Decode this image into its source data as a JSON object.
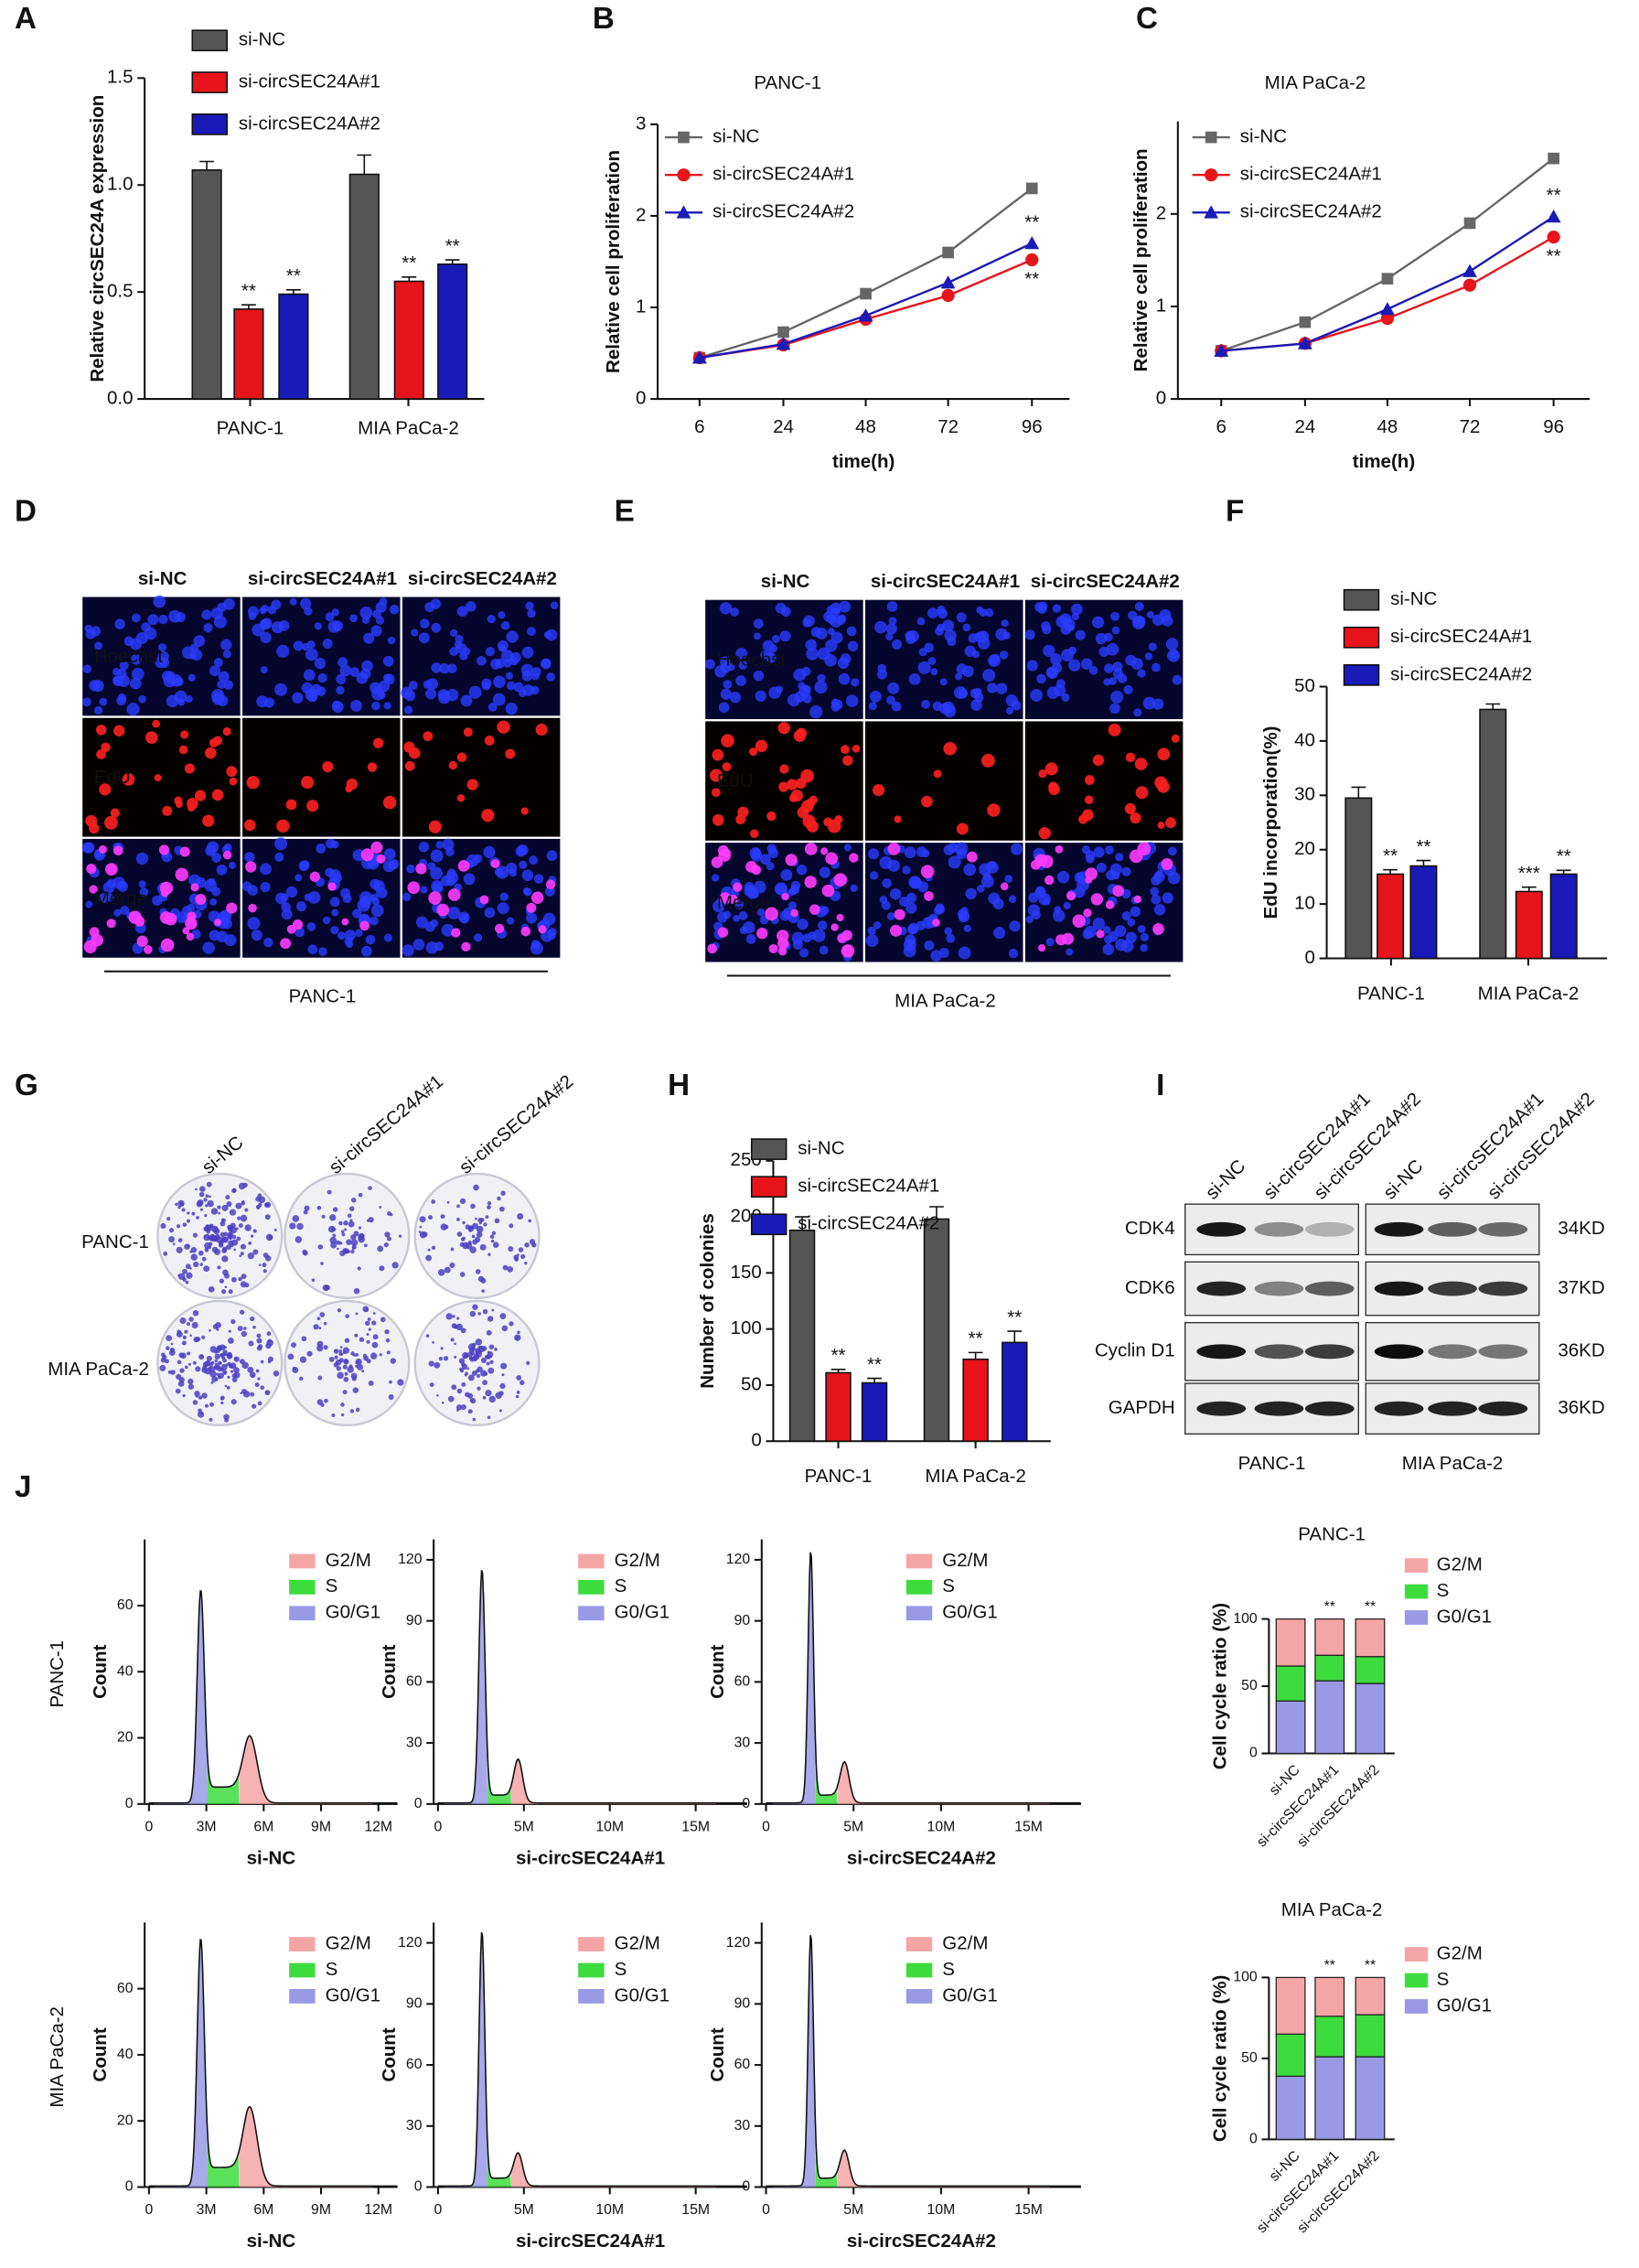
{
  "chart_data": [
    {
      "panel": "A",
      "type": "bar",
      "y_label": "Relative circSEC24A expression",
      "categories": [
        "PANC-1",
        "MIA PaCa-2"
      ],
      "series": [
        {
          "name": "si-NC",
          "color": "#555555",
          "values": [
            1.07,
            1.05
          ],
          "errors": [
            0.04,
            0.09
          ]
        },
        {
          "name": "si-circSEC24A#1",
          "color": "#e8141b",
          "values": [
            0.42,
            0.55
          ],
          "errors": [
            0.02,
            0.02
          ],
          "stars": [
            "**",
            "**"
          ]
        },
        {
          "name": "si-circSEC24A#2",
          "color": "#1a1ab8",
          "values": [
            0.49,
            0.63
          ],
          "errors": [
            0.02,
            0.02
          ],
          "stars": [
            "**",
            "**"
          ]
        }
      ],
      "ylim": [
        0,
        1.5
      ],
      "yticks": [
        {
          "value": 0,
          "label": "0.0"
        },
        {
          "value": 0.5,
          "label": "0.5"
        },
        {
          "value": 1,
          "label": "1.0"
        },
        {
          "value": 1.5,
          "label": "1.5"
        }
      ]
    },
    {
      "panel": "B",
      "type": "line",
      "title": "PANC-1",
      "x_label": "time(h)",
      "y_label": "Relative cell proliferation",
      "categories": [
        "6",
        "24",
        "48",
        "72",
        "96"
      ],
      "series": [
        {
          "name": "si-NC",
          "color": "#666666",
          "values": [
            0.45,
            0.73,
            1.15,
            1.6,
            2.3
          ]
        },
        {
          "name": "si-circSEC24A#1",
          "color": "#e8141b",
          "values": [
            0.45,
            0.59,
            0.87,
            1.13,
            1.52
          ],
          "stars": [
            null,
            null,
            null,
            null,
            "**"
          ]
        },
        {
          "name": "si-circSEC24A#2",
          "color": "#1a1ab8",
          "values": [
            0.45,
            0.6,
            0.91,
            1.27,
            1.7
          ],
          "stars": [
            null,
            null,
            null,
            null,
            "**"
          ]
        }
      ],
      "ylim": [
        0,
        3
      ],
      "yticks": [
        0,
        1,
        2,
        3
      ]
    },
    {
      "panel": "C",
      "type": "line",
      "title": "MIA PaCa-2",
      "x_label": "time(h)",
      "y_label": "Relative cell proliferation",
      "categories": [
        "6",
        "24",
        "48",
        "72",
        "96"
      ],
      "series": [
        {
          "name": "si-NC",
          "color": "#666666",
          "values": [
            0.52,
            0.83,
            1.3,
            1.9,
            2.6
          ]
        },
        {
          "name": "si-circSEC24A#1",
          "color": "#e8141b",
          "values": [
            0.52,
            0.6,
            0.87,
            1.23,
            1.75
          ],
          "stars": [
            null,
            null,
            null,
            null,
            "**"
          ]
        },
        {
          "name": "si-circSEC24A#2",
          "color": "#1a1ab8",
          "values": [
            0.52,
            0.6,
            0.97,
            1.38,
            1.97
          ],
          "stars": [
            null,
            null,
            null,
            null,
            "**"
          ]
        }
      ],
      "ylim": [
        0,
        3
      ],
      "yticks": [
        0,
        1,
        2
      ]
    },
    {
      "panel": "F",
      "type": "bar",
      "y_label": "EdU incorporation(%)",
      "categories": [
        "PANC-1",
        "MIA PaCa-2"
      ],
      "series": [
        {
          "name": "si-NC",
          "color": "#555555",
          "values": [
            29.5,
            45.8
          ],
          "errors": [
            2,
            1
          ]
        },
        {
          "name": "si-circSEC24A#1",
          "color": "#e8141b",
          "values": [
            15.5,
            12.3
          ],
          "errors": [
            0.8,
            0.8
          ],
          "stars": [
            "**",
            "***"
          ]
        },
        {
          "name": "si-circSEC24A#2",
          "color": "#1a1ab8",
          "values": [
            17,
            15.5
          ],
          "errors": [
            1,
            0.7
          ],
          "stars": [
            "**",
            "**"
          ]
        }
      ],
      "ylim": [
        0,
        50
      ],
      "yticks": [
        0,
        10,
        20,
        30,
        40,
        50
      ]
    },
    {
      "panel": "H",
      "type": "bar",
      "y_label": "Number of colonies",
      "categories": [
        "PANC-1",
        "MIA PaCa-2"
      ],
      "series": [
        {
          "name": "si-NC",
          "color": "#555555",
          "values": [
            188,
            198
          ],
          "errors": [
            12,
            11
          ]
        },
        {
          "name": "si-circSEC24A#1",
          "color": "#e8141b",
          "values": [
            61,
            73
          ],
          "errors": [
            3,
            6
          ]
        },
        {
          "name": "si-circSEC24A#2",
          "color": "#1a1ab8",
          "values": [
            52,
            88
          ],
          "errors": [
            4,
            10
          ]
        }
      ],
      "stars": [
        [
          "**",
          "**"
        ],
        [
          "**",
          "**"
        ]
      ],
      "ylim": [
        0,
        250
      ],
      "yticks": [
        0,
        50,
        100,
        150,
        200,
        250
      ]
    },
    {
      "type": "stacked-bar",
      "title": "PANC-1",
      "y_label": "Cell cycle ratio (%)",
      "categories": [
        "si-NC",
        "si-circSEC24A#1",
        "si-circSEC24A#2"
      ],
      "series": [
        {
          "name": "G0/G1",
          "color": "#9999e6",
          "values": [
            39,
            54,
            52
          ]
        },
        {
          "name": "S",
          "color": "#3ddc3d",
          "values": [
            26,
            19,
            20
          ]
        },
        {
          "name": "G2/M",
          "color": "#f4a6a6",
          "values": [
            35,
            27,
            28
          ]
        }
      ],
      "stars": [
        null,
        "**",
        "**"
      ],
      "ylim": [
        0,
        100
      ],
      "yticks": [
        0,
        50,
        100
      ]
    },
    {
      "type": "stacked-bar",
      "title": "MIA PaCa-2",
      "y_label": "Cell cycle ratio (%)",
      "categories": [
        "si-NC",
        "si-circSEC24A#1",
        "si-circSEC24A#2"
      ],
      "series": [
        {
          "name": "G0/G1",
          "color": "#9999e6",
          "values": [
            39,
            51,
            51
          ]
        },
        {
          "name": "S",
          "color": "#3ddc3d",
          "values": [
            26,
            25,
            26
          ]
        },
        {
          "name": "G2/M",
          "color": "#f4a6a6",
          "values": [
            35,
            24,
            23
          ]
        }
      ],
      "stars": [
        null,
        "**",
        "**"
      ],
      "ylim": [
        0,
        100
      ],
      "yticks": [
        0,
        50,
        100
      ]
    },
    {
      "panel": "J",
      "type": "flow-histogram",
      "row_label": "PANC-1",
      "x_label": "si-NC",
      "y_label": "Count",
      "legend": [
        {
          "name": "G2/M",
          "color": "#f4a6a6"
        },
        {
          "name": "S",
          "color": "#3ddc3d"
        },
        {
          "name": "G0/G1",
          "color": "#9999e6"
        }
      ],
      "xlim": [
        0,
        13000000
      ],
      "xticks": [
        0,
        {
          "value": 3000000,
          "label": "3M"
        },
        {
          "value": 6000000,
          "label": "6M"
        },
        {
          "value": 9000000,
          "label": "9M"
        },
        {
          "value": 12000000,
          "label": "12M"
        }
      ],
      "ylim": [
        0,
        80
      ],
      "yticks": [
        0,
        20,
        40,
        60
      ]
    },
    {
      "type": "flow-histogram",
      "x_label": "si-circSEC24A#1",
      "y_label": "Count",
      "legend": [
        {
          "name": "G2/M",
          "color": "#f4a6a6"
        },
        {
          "name": "S",
          "color": "#3ddc3d"
        },
        {
          "name": "G0/G1",
          "color": "#9999e6"
        }
      ],
      "xlim": [
        0,
        18000000
      ],
      "xticks": [
        0,
        {
          "value": 5000000,
          "label": "5M"
        },
        {
          "value": 10000000,
          "label": "10M"
        },
        {
          "value": 15000000,
          "label": "15M"
        }
      ],
      "ylim": [
        0,
        130
      ],
      "yticks": [
        0,
        30,
        60,
        90,
        120
      ]
    },
    {
      "type": "flow-histogram",
      "x_label": "si-circSEC24A#2",
      "y_label": "Count",
      "legend": [
        {
          "name": "G2/M",
          "color": "#f4a6a6"
        },
        {
          "name": "S",
          "color": "#3ddc3d"
        },
        {
          "name": "G0/G1",
          "color": "#9999e6"
        }
      ],
      "xlim": [
        0,
        18000000
      ],
      "xticks": [
        0,
        {
          "value": 5000000,
          "label": "5M"
        },
        {
          "value": 10000000,
          "label": "10M"
        },
        {
          "value": 15000000,
          "label": "15M"
        }
      ],
      "ylim": [
        0,
        130
      ],
      "yticks": [
        0,
        30,
        60,
        90,
        120
      ]
    },
    {
      "type": "flow-histogram",
      "row_label": "MIA PaCa-2",
      "x_label": "si-NC",
      "y_label": "Count",
      "legend": [
        {
          "name": "G2/M",
          "color": "#f4a6a6"
        },
        {
          "name": "S",
          "color": "#3ddc3d"
        },
        {
          "name": "G0/G1",
          "color": "#9999e6"
        }
      ],
      "xlim": [
        0,
        13000000
      ],
      "xticks": [
        0,
        {
          "value": 3000000,
          "label": "3M"
        },
        {
          "value": 6000000,
          "label": "6M"
        },
        {
          "value": 9000000,
          "label": "9M"
        },
        {
          "value": 12000000,
          "label": "12M"
        }
      ],
      "ylim": [
        0,
        80
      ],
      "yticks": [
        0,
        20,
        40,
        60
      ]
    },
    {
      "type": "flow-histogram",
      "x_label": "si-circSEC24A#1",
      "y_label": "Count",
      "legend": [
        {
          "name": "G2/M",
          "color": "#f4a6a6"
        },
        {
          "name": "S",
          "color": "#3ddc3d"
        },
        {
          "name": "G0/G1",
          "color": "#9999e6"
        }
      ],
      "xlim": [
        0,
        18000000
      ],
      "xticks": [
        0,
        {
          "value": 5000000,
          "label": "5M"
        },
        {
          "value": 10000000,
          "label": "10M"
        },
        {
          "value": 15000000,
          "label": "15M"
        }
      ],
      "ylim": [
        0,
        130
      ],
      "yticks": [
        0,
        30,
        60,
        90,
        120
      ]
    },
    {
      "type": "flow-histogram",
      "x_label": "si-circSEC24A#2",
      "y_label": "Count",
      "legend": [
        {
          "name": "G2/M",
          "color": "#f4a6a6"
        },
        {
          "name": "S",
          "color": "#3ddc3d"
        },
        {
          "name": "G0/G1",
          "color": "#9999e6"
        }
      ],
      "xlim": [
        0,
        18000000
      ],
      "xticks": [
        0,
        {
          "value": 5000000,
          "label": "5M"
        },
        {
          "value": 10000000,
          "label": "10M"
        },
        {
          "value": 15000000,
          "label": "15M"
        }
      ],
      "ylim": [
        0,
        130
      ],
      "yticks": [
        0,
        30,
        60,
        90,
        120
      ]
    }
  ],
  "panel_d": {
    "panel": "D",
    "columns": [
      "si-NC",
      "si-circSEC24A#1",
      "si-circSEC24A#2"
    ],
    "rows": [
      "Hoechst",
      "EdU",
      "Merge"
    ],
    "caption": "PANC-1"
  },
  "panel_e": {
    "panel": "E",
    "columns": [
      "si-NC",
      "si-circSEC24A#1",
      "si-circSEC24A#2"
    ],
    "rows": [
      "Hoechst",
      "EdU",
      "Merge"
    ],
    "caption": "MIA PaCa-2"
  },
  "panel_g": {
    "panel": "G",
    "columns": [
      "si-NC",
      "si-circSEC24A#1",
      "si-circSEC24A#2"
    ],
    "rows": [
      "PANC-1",
      "MIA PaCa-2"
    ]
  },
  "panel_i": {
    "panel": "I",
    "lanes": [
      "si-NC",
      "si-circSEC24A#1",
      "si-circSEC24A#2",
      "si-NC",
      "si-circSEC24A#1",
      "si-circSEC24A#2"
    ],
    "proteins": [
      "CDK4",
      "CDK6",
      "Cyclin D1",
      "GAPDH"
    ],
    "sizes": [
      "34KD",
      "37KD",
      "36KD",
      "36KD"
    ],
    "groups": [
      "PANC-1",
      "MIA PaCa-2"
    ]
  }
}
